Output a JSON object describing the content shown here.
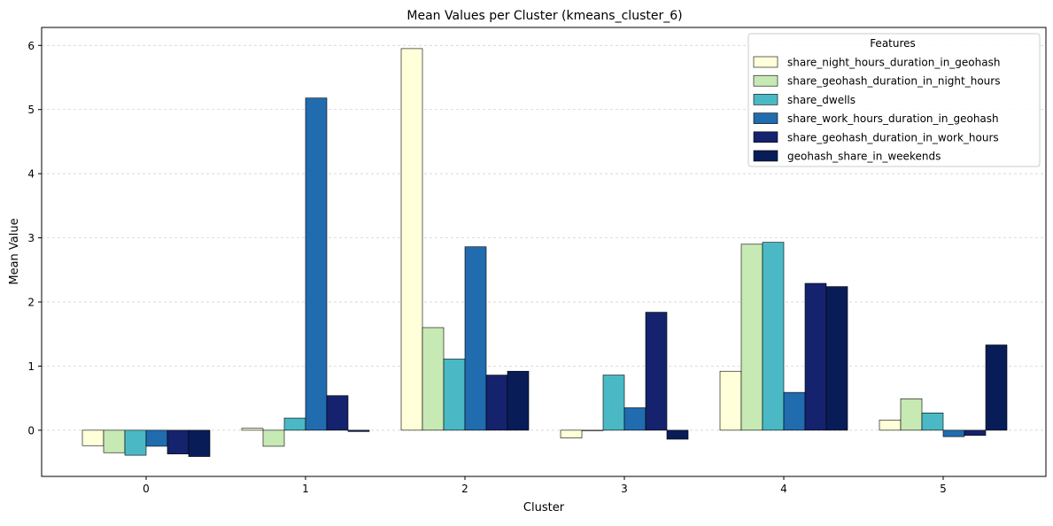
{
  "chart_data": {
    "type": "bar",
    "title": "Mean Values per Cluster (kmeans_cluster_6)",
    "xlabel": "Cluster",
    "ylabel": "Mean Value",
    "categories": [
      "0",
      "1",
      "2",
      "3",
      "4",
      "5"
    ],
    "ylim": [
      -0.72,
      6.28
    ],
    "yticks": [
      0,
      1,
      2,
      3,
      4,
      5,
      6
    ],
    "grid": "horizontal dashed",
    "legend": {
      "title": "Features",
      "position": "top-right"
    },
    "series": [
      {
        "name": "share_night_hours_duration_in_geohash",
        "color": "#ffffd9",
        "values": [
          -0.24,
          0.03,
          5.95,
          -0.12,
          0.92,
          0.16
        ]
      },
      {
        "name": "share_geohash_duration_in_night_hours",
        "color": "#c7e9b4",
        "values": [
          -0.35,
          -0.25,
          1.6,
          0.0,
          2.9,
          0.49
        ]
      },
      {
        "name": "share_dwells",
        "color": "#4ab9c5",
        "values": [
          -0.39,
          0.19,
          1.11,
          0.86,
          2.93,
          0.27
        ]
      },
      {
        "name": "share_work_hours_duration_in_geohash",
        "color": "#216baf",
        "values": [
          -0.25,
          5.18,
          2.86,
          0.35,
          0.59,
          -0.1
        ]
      },
      {
        "name": "share_geohash_duration_in_work_hours",
        "color": "#15226d",
        "values": [
          -0.37,
          0.54,
          0.86,
          1.84,
          2.29,
          -0.08
        ]
      },
      {
        "name": "geohash_share_in_weekends",
        "color": "#081d58",
        "values": [
          -0.41,
          -0.02,
          0.92,
          -0.14,
          2.24,
          1.33
        ]
      }
    ]
  }
}
